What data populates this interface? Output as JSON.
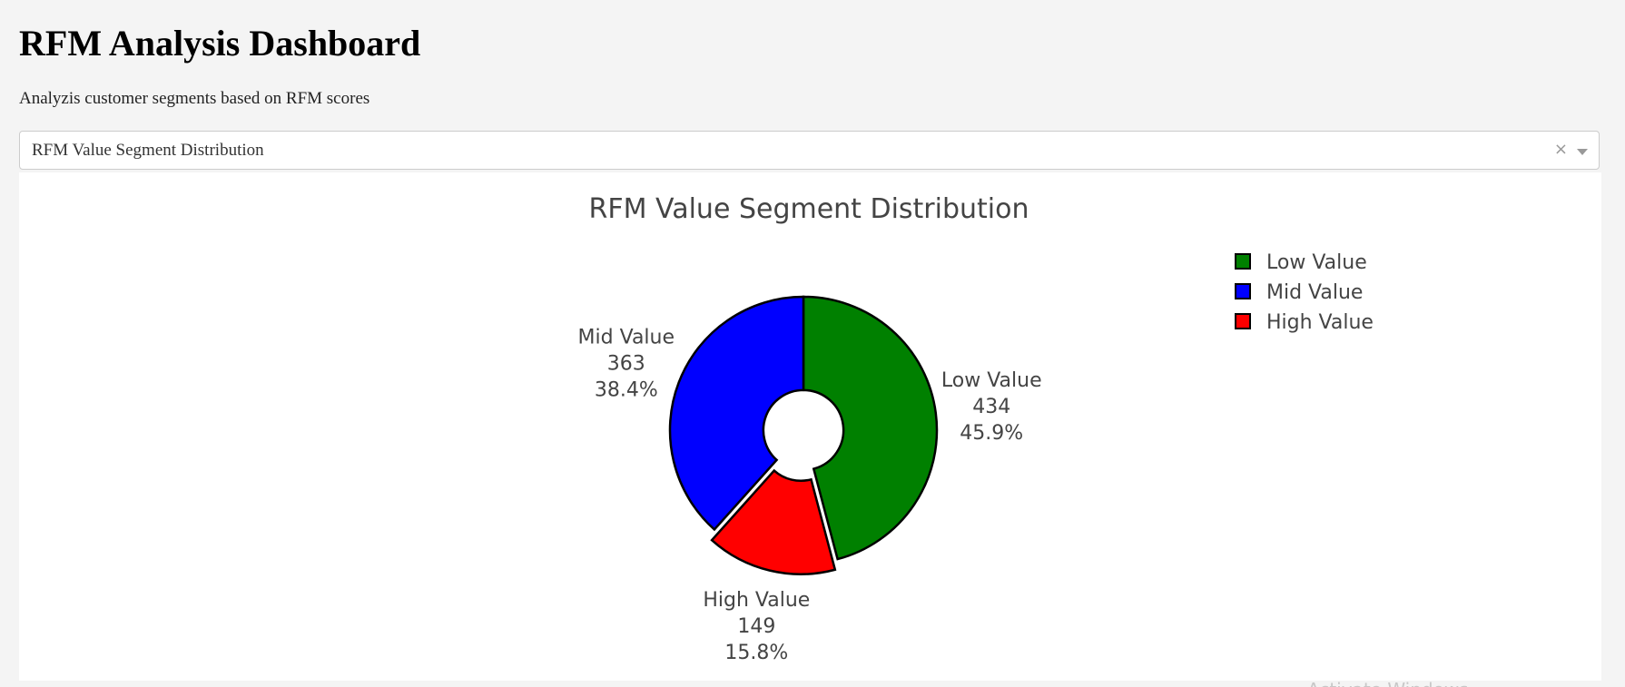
{
  "page": {
    "title": "RFM Analysis Dashboard",
    "subtitle": "Analyzis customer segments based on RFM scores"
  },
  "dropdown": {
    "selected": "RFM Value Segment Distribution",
    "clear_symbol": "×"
  },
  "chart_data": {
    "type": "pie",
    "hole": 0.3,
    "title": "RFM Value Segment Distribution",
    "legend_position": "top-right",
    "slices": [
      {
        "label": "Low Value",
        "value": 434,
        "percent": "45.9%",
        "color": "#008000",
        "pulled": false
      },
      {
        "label": "High Value",
        "value": 149,
        "percent": "15.8%",
        "color": "#ff0000",
        "pulled": true
      },
      {
        "label": "Mid Value",
        "value": 363,
        "percent": "38.4%",
        "color": "#0000ff",
        "pulled": false
      }
    ],
    "legend": [
      {
        "label": "Low Value",
        "color": "#008000"
      },
      {
        "label": "Mid Value",
        "color": "#0000ff"
      },
      {
        "label": "High Value",
        "color": "#ff0000"
      }
    ]
  },
  "watermark": "Activate Windows"
}
